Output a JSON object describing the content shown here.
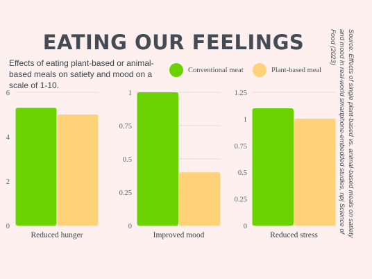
{
  "header": {
    "title": "EATING OUR FEELINGS",
    "subtitle": "Effects of eating plant-based or animal-based meals on satiety and mood on a scale of 1-10."
  },
  "legend": [
    {
      "label": "Conventional meat",
      "color": "#6ad200"
    },
    {
      "label": "Plant-based meal",
      "color": "#ffd27a"
    }
  ],
  "source": "Source: Effects of single plant-based vs. animal-based meals on satiety and mood in real-world smartphone-embedded studies, npj Science of Food (2023)",
  "chart_data": [
    {
      "type": "bar",
      "categories": [
        "Reduced hunger"
      ],
      "series": [
        {
          "name": "Conventional meat",
          "values": [
            5.3
          ]
        },
        {
          "name": "Plant-based meal",
          "values": [
            5.0
          ]
        }
      ],
      "ylim": [
        0,
        6
      ],
      "yticks": [
        "0",
        "2",
        "4",
        "6"
      ],
      "grid": true
    },
    {
      "type": "bar",
      "categories": [
        "Improved mood"
      ],
      "series": [
        {
          "name": "Conventional meat",
          "values": [
            1.0
          ]
        },
        {
          "name": "Plant-based meal",
          "values": [
            0.4
          ]
        }
      ],
      "ylim": [
        0,
        1
      ],
      "yticks": [
        "0",
        "0.25",
        "0.5",
        "0.75",
        "1"
      ],
      "grid": true
    },
    {
      "type": "bar",
      "categories": [
        "Reduced stress"
      ],
      "series": [
        {
          "name": "Conventional meat",
          "values": [
            1.1
          ]
        },
        {
          "name": "Plant-based meal",
          "values": [
            1.0
          ]
        }
      ],
      "ylim": [
        0,
        1.25
      ],
      "yticks": [
        "0",
        "0.25",
        "0.5",
        "0.75",
        "1",
        "1.25"
      ],
      "grid": true
    }
  ]
}
